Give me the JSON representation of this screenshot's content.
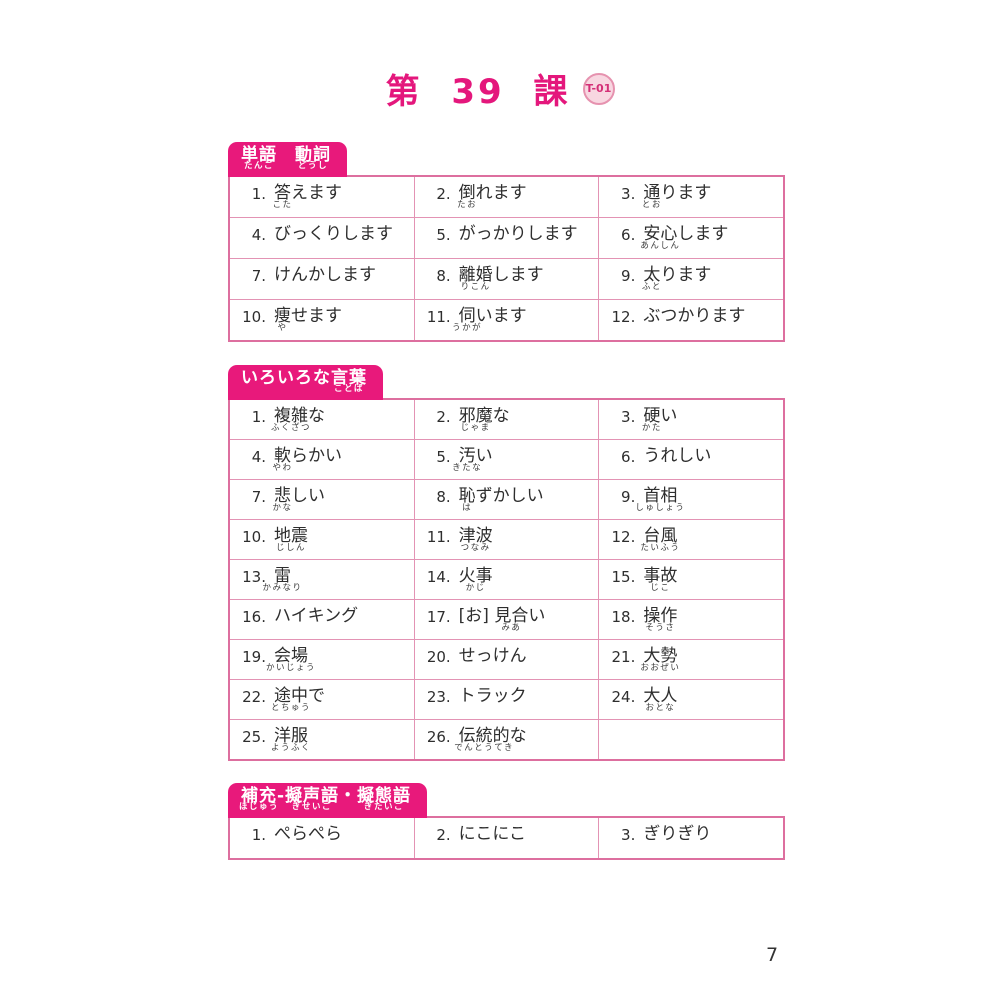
{
  "page": {
    "title": "第 39 課",
    "badge": "T-01",
    "page_number": "7",
    "colors": {
      "accent_pink": "#e8197b",
      "table_border_pink": "#e393b4",
      "table_outer_border": "#dd6f9f",
      "title_pink": "#e4177c",
      "badge_bg": "#f8d7e1",
      "badge_border": "#e692af",
      "badge_text": "#d42f77",
      "body_text": "#2e2e2e"
    }
  },
  "sections": [
    {
      "id": "tango-doushi",
      "columns": 3,
      "tab": [
        {
          "base": "単語",
          "ruby": "たんご"
        },
        {
          "base": "　"
        },
        {
          "base": "動詞",
          "ruby": "どうし"
        }
      ],
      "items": [
        {
          "n": "1.",
          "parts": [
            {
              "base": "答",
              "ruby": "こた"
            },
            {
              "base": "えます"
            }
          ]
        },
        {
          "n": "2.",
          "parts": [
            {
              "base": "倒",
              "ruby": "たお"
            },
            {
              "base": "れます"
            }
          ]
        },
        {
          "n": "3.",
          "parts": [
            {
              "base": "通",
              "ruby": "とお"
            },
            {
              "base": "ります"
            }
          ]
        },
        {
          "n": "4.",
          "parts": [
            {
              "base": "びっくりします"
            }
          ]
        },
        {
          "n": "5.",
          "parts": [
            {
              "base": "がっかりします"
            }
          ]
        },
        {
          "n": "6.",
          "parts": [
            {
              "base": "安心",
              "ruby": "あんしん"
            },
            {
              "base": "します"
            }
          ]
        },
        {
          "n": "7.",
          "parts": [
            {
              "base": "けんかします"
            }
          ]
        },
        {
          "n": "8.",
          "parts": [
            {
              "base": "離婚",
              "ruby": "りこん"
            },
            {
              "base": "します"
            }
          ]
        },
        {
          "n": "9.",
          "parts": [
            {
              "base": "太",
              "ruby": "ふと"
            },
            {
              "base": "ります"
            }
          ]
        },
        {
          "n": "10.",
          "parts": [
            {
              "base": "痩",
              "ruby": "や"
            },
            {
              "base": "せます"
            }
          ]
        },
        {
          "n": "11.",
          "parts": [
            {
              "base": "伺",
              "ruby": "うかが"
            },
            {
              "base": "います"
            }
          ]
        },
        {
          "n": "12.",
          "parts": [
            {
              "base": "ぶつかります"
            }
          ]
        }
      ]
    },
    {
      "id": "iroirona-kotoba",
      "columns": 3,
      "tab": [
        {
          "base": "いろいろな"
        },
        {
          "base": "言葉",
          "ruby": "ことば"
        }
      ],
      "items": [
        {
          "n": "1.",
          "parts": [
            {
              "base": "複雑",
              "ruby": "ふくざつ"
            },
            {
              "base": "な"
            }
          ]
        },
        {
          "n": "2.",
          "parts": [
            {
              "base": "邪魔",
              "ruby": "じゃま"
            },
            {
              "base": "な"
            }
          ]
        },
        {
          "n": "3.",
          "parts": [
            {
              "base": "硬",
              "ruby": "かた"
            },
            {
              "base": "い"
            }
          ]
        },
        {
          "n": "4.",
          "parts": [
            {
              "base": "軟",
              "ruby": "やわ"
            },
            {
              "base": "らかい"
            }
          ]
        },
        {
          "n": "5.",
          "parts": [
            {
              "base": "汚",
              "ruby": "きたな"
            },
            {
              "base": "い"
            }
          ]
        },
        {
          "n": "6.",
          "parts": [
            {
              "base": "うれしい"
            }
          ]
        },
        {
          "n": "7.",
          "parts": [
            {
              "base": "悲",
              "ruby": "かな"
            },
            {
              "base": "しい"
            }
          ]
        },
        {
          "n": "8.",
          "parts": [
            {
              "base": "恥",
              "ruby": "は"
            },
            {
              "base": "ずかしい"
            }
          ]
        },
        {
          "n": "9.",
          "parts": [
            {
              "base": "首相",
              "ruby": "しゅしょう"
            }
          ]
        },
        {
          "n": "10.",
          "parts": [
            {
              "base": "地震",
              "ruby": "じしん"
            }
          ]
        },
        {
          "n": "11.",
          "parts": [
            {
              "base": "津波",
              "ruby": "つなみ"
            }
          ]
        },
        {
          "n": "12.",
          "parts": [
            {
              "base": "台風",
              "ruby": "たいふう"
            }
          ]
        },
        {
          "n": "13.",
          "parts": [
            {
              "base": "雷",
              "ruby": "かみなり"
            }
          ]
        },
        {
          "n": "14.",
          "parts": [
            {
              "base": "火事",
              "ruby": "かじ"
            }
          ]
        },
        {
          "n": "15.",
          "parts": [
            {
              "base": "事故",
              "ruby": "じこ"
            }
          ]
        },
        {
          "n": "16.",
          "parts": [
            {
              "base": "ハイキング"
            }
          ]
        },
        {
          "n": "17.",
          "parts": [
            {
              "base": "[お] "
            },
            {
              "base": "見合",
              "ruby": "みあ"
            },
            {
              "base": "い"
            }
          ]
        },
        {
          "n": "18.",
          "parts": [
            {
              "base": "操作",
              "ruby": "そうさ"
            }
          ]
        },
        {
          "n": "19.",
          "parts": [
            {
              "base": "会場",
              "ruby": "かいじょう"
            }
          ]
        },
        {
          "n": "20.",
          "parts": [
            {
              "base": "せっけん"
            }
          ]
        },
        {
          "n": "21.",
          "parts": [
            {
              "base": "大勢",
              "ruby": "おおぜい"
            }
          ]
        },
        {
          "n": "22.",
          "parts": [
            {
              "base": "途中",
              "ruby": "とちゅう"
            },
            {
              "base": "で"
            }
          ]
        },
        {
          "n": "23.",
          "parts": [
            {
              "base": "トラック"
            }
          ]
        },
        {
          "n": "24.",
          "parts": [
            {
              "base": "大人",
              "ruby": "おとな"
            }
          ]
        },
        {
          "n": "25.",
          "parts": [
            {
              "base": "洋服",
              "ruby": "ようふく"
            }
          ]
        },
        {
          "n": "26.",
          "parts": [
            {
              "base": "伝統的",
              "ruby": "でんとうてき"
            },
            {
              "base": "な"
            }
          ]
        }
      ]
    },
    {
      "id": "hojuu-giseigo-gitaigo",
      "columns": 3,
      "tab": [
        {
          "base": "補充",
          "ruby": "ほじゅう"
        },
        {
          "base": "-"
        },
        {
          "base": "擬声語",
          "ruby": "ぎせいご"
        },
        {
          "base": "・"
        },
        {
          "base": "擬態語",
          "ruby": "ぎたいご"
        }
      ],
      "items": [
        {
          "n": "1.",
          "parts": [
            {
              "base": "ぺらぺら"
            }
          ]
        },
        {
          "n": "2.",
          "parts": [
            {
              "base": "にこにこ"
            }
          ]
        },
        {
          "n": "3.",
          "parts": [
            {
              "base": "ぎりぎり"
            }
          ]
        }
      ]
    }
  ]
}
